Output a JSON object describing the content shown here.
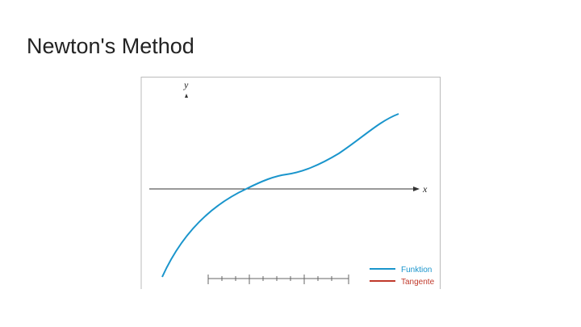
{
  "title": "Newton's Method",
  "figure": {
    "axis_labels": {
      "x": "x",
      "y": "y"
    },
    "legend": [
      "Funktion",
      "Tangente"
    ]
  }
}
